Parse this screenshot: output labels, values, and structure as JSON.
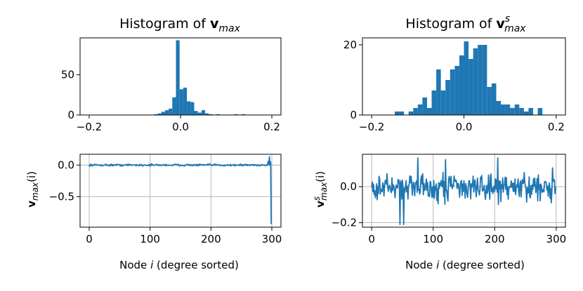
{
  "chart_data": [
    {
      "id": "hist_vmax",
      "type": "histogram",
      "title": {
        "prefix": "Histogram of ",
        "bold": "v",
        "sub": "max",
        "sup": ""
      },
      "xlim": [
        -0.22,
        0.22
      ],
      "ylim": [
        0,
        96
      ],
      "xticks": [
        {
          "v": -0.2,
          "label": "−0.2"
        },
        {
          "v": 0.0,
          "label": "0.0"
        },
        {
          "v": 0.2,
          "label": "0.2"
        }
      ],
      "yticks": [
        {
          "v": 0,
          "label": "0"
        },
        {
          "v": 50,
          "label": "50"
        }
      ],
      "grid": false,
      "color": "#1f77b4",
      "bins": [
        {
          "x0": -0.058,
          "x1": -0.05,
          "count": 1
        },
        {
          "x0": -0.05,
          "x1": -0.042,
          "count": 2
        },
        {
          "x0": -0.042,
          "x1": -0.034,
          "count": 4
        },
        {
          "x0": -0.034,
          "x1": -0.026,
          "count": 6
        },
        {
          "x0": -0.026,
          "x1": -0.018,
          "count": 8
        },
        {
          "x0": -0.018,
          "x1": -0.01,
          "count": 22
        },
        {
          "x0": -0.01,
          "x1": -0.002,
          "count": 93
        },
        {
          "x0": -0.002,
          "x1": 0.006,
          "count": 32
        },
        {
          "x0": 0.006,
          "x1": 0.014,
          "count": 34
        },
        {
          "x0": 0.014,
          "x1": 0.022,
          "count": 17
        },
        {
          "x0": 0.022,
          "x1": 0.03,
          "count": 16
        },
        {
          "x0": 0.03,
          "x1": 0.038,
          "count": 5
        },
        {
          "x0": 0.038,
          "x1": 0.046,
          "count": 3
        },
        {
          "x0": 0.046,
          "x1": 0.054,
          "count": 6
        },
        {
          "x0": 0.054,
          "x1": 0.062,
          "count": 2
        },
        {
          "x0": 0.062,
          "x1": 0.07,
          "count": 1
        },
        {
          "x0": 0.078,
          "x1": 0.086,
          "count": 1
        },
        {
          "x0": 0.118,
          "x1": 0.126,
          "count": 1
        },
        {
          "x0": 0.134,
          "x1": 0.142,
          "count": 1
        }
      ]
    },
    {
      "id": "hist_vsmax",
      "type": "histogram",
      "title": {
        "prefix": "Histogram of ",
        "bold": "v",
        "sub": "max",
        "sup": "s"
      },
      "xlim": [
        -0.22,
        0.22
      ],
      "ylim": [
        0,
        22
      ],
      "xticks": [
        {
          "v": -0.2,
          "label": "−0.2"
        },
        {
          "v": 0.0,
          "label": "0.0"
        },
        {
          "v": 0.2,
          "label": "0.2"
        }
      ],
      "yticks": [
        {
          "v": 0,
          "label": "0"
        },
        {
          "v": 20,
          "label": "20"
        }
      ],
      "grid": false,
      "color": "#1f77b4",
      "bins": [
        {
          "x0": -0.15,
          "x1": -0.14,
          "count": 1
        },
        {
          "x0": -0.14,
          "x1": -0.13,
          "count": 1
        },
        {
          "x0": -0.12,
          "x1": -0.11,
          "count": 1
        },
        {
          "x0": -0.11,
          "x1": -0.1,
          "count": 2
        },
        {
          "x0": -0.1,
          "x1": -0.09,
          "count": 3
        },
        {
          "x0": -0.09,
          "x1": -0.08,
          "count": 5
        },
        {
          "x0": -0.08,
          "x1": -0.07,
          "count": 2
        },
        {
          "x0": -0.07,
          "x1": -0.06,
          "count": 7
        },
        {
          "x0": -0.06,
          "x1": -0.05,
          "count": 13
        },
        {
          "x0": -0.05,
          "x1": -0.04,
          "count": 7
        },
        {
          "x0": -0.04,
          "x1": -0.03,
          "count": 10
        },
        {
          "x0": -0.03,
          "x1": -0.02,
          "count": 13
        },
        {
          "x0": -0.02,
          "x1": -0.01,
          "count": 14
        },
        {
          "x0": -0.01,
          "x1": 0.0,
          "count": 17
        },
        {
          "x0": 0.0,
          "x1": 0.01,
          "count": 21
        },
        {
          "x0": 0.01,
          "x1": 0.02,
          "count": 16
        },
        {
          "x0": 0.02,
          "x1": 0.03,
          "count": 19
        },
        {
          "x0": 0.03,
          "x1": 0.04,
          "count": 20
        },
        {
          "x0": 0.04,
          "x1": 0.05,
          "count": 20
        },
        {
          "x0": 0.05,
          "x1": 0.06,
          "count": 8
        },
        {
          "x0": 0.06,
          "x1": 0.07,
          "count": 9
        },
        {
          "x0": 0.07,
          "x1": 0.08,
          "count": 4
        },
        {
          "x0": 0.08,
          "x1": 0.09,
          "count": 3
        },
        {
          "x0": 0.09,
          "x1": 0.1,
          "count": 3
        },
        {
          "x0": 0.1,
          "x1": 0.11,
          "count": 2
        },
        {
          "x0": 0.11,
          "x1": 0.12,
          "count": 3
        },
        {
          "x0": 0.12,
          "x1": 0.13,
          "count": 2
        },
        {
          "x0": 0.13,
          "x1": 0.14,
          "count": 1
        },
        {
          "x0": 0.14,
          "x1": 0.15,
          "count": 2
        },
        {
          "x0": 0.16,
          "x1": 0.17,
          "count": 2
        }
      ]
    },
    {
      "id": "line_vmax",
      "type": "line",
      "xlabel": {
        "text": "Node ",
        "italic": "i",
        "rest": " (degree sorted)"
      },
      "ylabel": {
        "bold": "v",
        "sub": "max",
        "sup": "",
        "arg": "(i)"
      },
      "xlim": [
        -15,
        315
      ],
      "ylim": [
        -0.98,
        0.17
      ],
      "xticks": [
        {
          "v": 0,
          "label": "0"
        },
        {
          "v": 100,
          "label": "100"
        },
        {
          "v": 200,
          "label": "200"
        },
        {
          "v": 300,
          "label": "300"
        }
      ],
      "yticks": [
        {
          "v": 0.0,
          "label": "0.0"
        },
        {
          "v": -0.5,
          "label": "−0.5"
        }
      ],
      "grid": true,
      "color": "#1f77b4",
      "n": 300,
      "amplitude": 0.012,
      "extra": [
        {
          "x": 294,
          "y": 0.06
        },
        {
          "x": 296,
          "y": 0.13
        },
        {
          "x": 298,
          "y": 0.05
        },
        {
          "x": 299,
          "y": -0.93
        }
      ]
    },
    {
      "id": "line_vsmax",
      "type": "line",
      "xlabel": {
        "text": "Node ",
        "italic": "i",
        "rest": " (degree sorted)"
      },
      "ylabel": {
        "bold": "v",
        "sub": "max",
        "sup": "s",
        "arg": "(i)"
      },
      "xlim": [
        -15,
        315
      ],
      "ylim": [
        -0.225,
        0.18
      ],
      "xticks": [
        {
          "v": 0,
          "label": "0"
        },
        {
          "v": 100,
          "label": "100"
        },
        {
          "v": 200,
          "label": "200"
        },
        {
          "v": 300,
          "label": "300"
        }
      ],
      "yticks": [
        {
          "v": 0.0,
          "label": "0.0"
        },
        {
          "v": -0.2,
          "label": "−0.2"
        }
      ],
      "grid": true,
      "color": "#1f77b4",
      "n": 300,
      "amplitude": 0.06,
      "extra": [
        {
          "x": 46,
          "y": -0.21
        },
        {
          "x": 52,
          "y": -0.21
        },
        {
          "x": 75,
          "y": 0.16
        },
        {
          "x": 120,
          "y": 0.15
        },
        {
          "x": 205,
          "y": 0.16
        }
      ]
    }
  ]
}
